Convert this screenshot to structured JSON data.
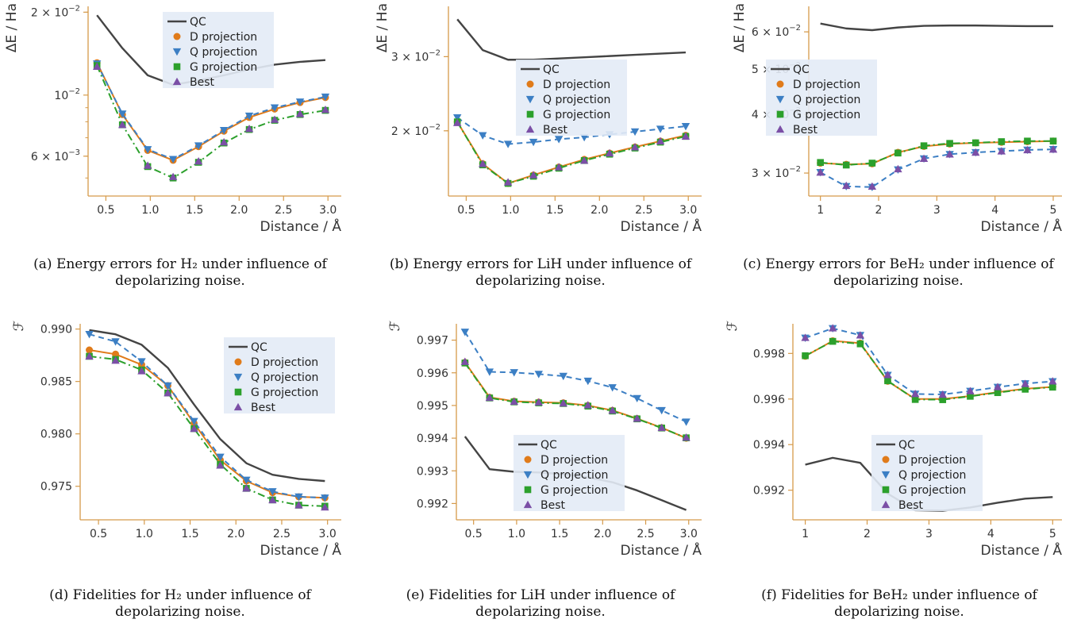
{
  "colors": {
    "QC": "#444444",
    "D projection": "#e07b1a",
    "Q projection": "#3c7fc4",
    "G projection": "#2ca02c",
    "Best": "#7b4fa6",
    "axis": "#d59a4a",
    "legend_bg": "#e3ebf6"
  },
  "captions": [
    {
      "lines": [
        "(a) Energy errors for H₂ under influence of",
        "depolarizing noise."
      ]
    },
    {
      "lines": [
        "(b) Energy errors for LiH under influence of",
        "depolarizing noise."
      ]
    },
    {
      "lines": [
        "(c) Energy errors for BeH₂ under influence of",
        "depolarizing noise."
      ]
    },
    {
      "lines": [
        "(d) Fidelities for H₂ under influence of",
        "depolarizing noise."
      ]
    },
    {
      "lines": [
        "(e) Fidelities for LiH under influence of",
        "depolarizing noise."
      ]
    },
    {
      "lines": [
        "(f) Fidelities for BeH₂ under influence of",
        "depolarizing noise."
      ]
    }
  ],
  "chart_data": [
    {
      "type": "line",
      "xlabel": "Distance / Å",
      "ylabel": "ΔE / Ha",
      "yscale": "log",
      "xlim": [
        0.3,
        3.15
      ],
      "ylim": [
        0.0043,
        0.021
      ],
      "xticks": [
        0.5,
        1.0,
        1.5,
        2.0,
        2.5,
        3.0
      ],
      "xtick_labels": [
        "0.5",
        "1.0",
        "1.5",
        "2.0",
        "2.5",
        "3.0"
      ],
      "yticks": [
        0.02,
        0.01,
        0.006
      ],
      "ytick_labels": [
        {
          "mant": "2 × 10",
          "exp": "−2"
        },
        {
          "mant": "10",
          "exp": "−2"
        },
        {
          "mant": "6 × 10",
          "exp": "−3"
        }
      ],
      "legend_position": "top-center",
      "x": [
        0.4,
        0.686,
        0.971,
        1.257,
        1.543,
        1.829,
        2.114,
        2.4,
        2.686,
        2.971
      ],
      "series": [
        {
          "name": "QC",
          "values": [
            0.0195,
            0.0148,
            0.0118,
            0.0109,
            0.0113,
            0.0118,
            0.0124,
            0.0129,
            0.0132,
            0.0134
          ]
        },
        {
          "name": "D projection",
          "values": [
            0.0131,
            0.0085,
            0.0063,
            0.0058,
            0.0065,
            0.0074,
            0.0083,
            0.0089,
            0.0094,
            0.0098
          ]
        },
        {
          "name": "Q projection",
          "values": [
            0.013,
            0.00855,
            0.00635,
            0.00585,
            0.00655,
            0.00745,
            0.0084,
            0.009,
            0.00945,
            0.00985
          ]
        },
        {
          "name": "G projection",
          "values": [
            0.0128,
            0.0078,
            0.0055,
            0.005,
            0.0057,
            0.0067,
            0.0075,
            0.0081,
            0.0085,
            0.0088
          ]
        },
        {
          "name": "Best",
          "values": [
            0.0127,
            0.0078,
            0.00555,
            0.00505,
            0.00575,
            0.00675,
            0.00755,
            0.00815,
            0.00855,
            0.00885
          ]
        }
      ]
    },
    {
      "type": "line",
      "xlabel": "Distance / Å",
      "ylabel": "ΔE / Ha",
      "yscale": "log",
      "xlim": [
        0.3,
        3.15
      ],
      "ylim": [
        0.014,
        0.0395
      ],
      "xticks": [
        0.5,
        1.0,
        1.5,
        2.0,
        2.5,
        3.0
      ],
      "xtick_labels": [
        "0.5",
        "1.0",
        "1.5",
        "2.0",
        "2.5",
        "3.0"
      ],
      "yticks": [
        0.03,
        0.02
      ],
      "ytick_labels": [
        {
          "mant": "3 × 10",
          "exp": "−2"
        },
        {
          "mant": "2 × 10",
          "exp": "−2"
        }
      ],
      "legend_position": "center-right",
      "x": [
        0.4,
        0.686,
        0.971,
        1.257,
        1.543,
        1.829,
        2.114,
        2.4,
        2.686,
        2.971
      ],
      "series": [
        {
          "name": "QC",
          "values": [
            0.0368,
            0.0311,
            0.0295,
            0.0295,
            0.0297,
            0.0299,
            0.0301,
            0.0303,
            0.0305,
            0.0307
          ]
        },
        {
          "name": "D projection",
          "values": [
            0.021,
            0.0167,
            0.015,
            0.0157,
            0.0164,
            0.0171,
            0.0177,
            0.0183,
            0.0189,
            0.0195
          ]
        },
        {
          "name": "Q projection",
          "values": [
            0.0215,
            0.0195,
            0.0186,
            0.0188,
            0.0191,
            0.0193,
            0.0196,
            0.0199,
            0.0202,
            0.0205
          ]
        },
        {
          "name": "G projection",
          "values": [
            0.021,
            0.0166,
            0.015,
            0.0156,
            0.0163,
            0.017,
            0.0176,
            0.0182,
            0.0188,
            0.0194
          ]
        },
        {
          "name": "Best",
          "values": [
            0.0209,
            0.0167,
            0.0151,
            0.0157,
            0.0164,
            0.017,
            0.0177,
            0.0183,
            0.0189,
            0.0194
          ]
        }
      ]
    },
    {
      "type": "line",
      "xlabel": "Distance / Å",
      "ylabel": "ΔE / Ha",
      "yscale": "log",
      "xlim": [
        0.8,
        5.15
      ],
      "ylim": [
        0.0268,
        0.068
      ],
      "xticks": [
        1,
        2,
        3,
        4,
        5
      ],
      "xtick_labels": [
        "1",
        "2",
        "3",
        "4",
        "5"
      ],
      "yticks": [
        0.06,
        0.05,
        0.04,
        0.03
      ],
      "ytick_labels": [
        {
          "mant": "6 × 10",
          "exp": "−2"
        },
        {
          "mant": "5 × 10",
          "exp": "−2"
        },
        {
          "mant": "4 × 10",
          "exp": "−2"
        },
        {
          "mant": "3 × 10",
          "exp": "−2"
        }
      ],
      "legend_position": "center-left",
      "x": [
        1.0,
        1.444,
        1.889,
        2.333,
        2.778,
        3.222,
        3.667,
        4.111,
        4.556,
        5.0
      ],
      "series": [
        {
          "name": "QC",
          "values": [
            0.0625,
            0.061,
            0.0605,
            0.0613,
            0.0618,
            0.0619,
            0.0619,
            0.0618,
            0.0617,
            0.0617
          ]
        },
        {
          "name": "D projection",
          "values": [
            0.0315,
            0.0313,
            0.0314,
            0.0332,
            0.0342,
            0.0346,
            0.0348,
            0.0349,
            0.035,
            0.0351
          ]
        },
        {
          "name": "Q projection",
          "values": [
            0.0301,
            0.0281,
            0.028,
            0.0305,
            0.0322,
            0.0329,
            0.0332,
            0.0334,
            0.0336,
            0.0337
          ]
        },
        {
          "name": "G projection",
          "values": [
            0.0316,
            0.0312,
            0.0315,
            0.0331,
            0.0343,
            0.0347,
            0.0348,
            0.035,
            0.0351,
            0.0351
          ]
        },
        {
          "name": "Best",
          "values": [
            0.0301,
            0.0282,
            0.0281,
            0.0306,
            0.0322,
            0.0329,
            0.0332,
            0.0334,
            0.0336,
            0.0337
          ]
        }
      ]
    },
    {
      "type": "line",
      "xlabel": "Distance / Å",
      "ylabel": "ℱ",
      "yscale": "linear",
      "xlim": [
        0.3,
        3.15
      ],
      "ylim": [
        0.9718,
        0.9905
      ],
      "xticks": [
        0.5,
        1.0,
        1.5,
        2.0,
        2.5,
        3.0
      ],
      "xtick_labels": [
        "0.5",
        "1.0",
        "1.5",
        "2.0",
        "2.5",
        "3.0"
      ],
      "yticks": [
        0.99,
        0.985,
        0.98,
        0.975
      ],
      "ytick_labels": [
        "0.990",
        "0.985",
        "0.980",
        "0.975"
      ],
      "legend_position": "top-right",
      "x": [
        0.4,
        0.686,
        0.971,
        1.257,
        1.543,
        1.829,
        2.114,
        2.4,
        2.686,
        2.971
      ],
      "series": [
        {
          "name": "QC",
          "values": [
            0.9899,
            0.9895,
            0.9885,
            0.9863,
            0.9828,
            0.9795,
            0.9772,
            0.9761,
            0.9757,
            0.9755
          ]
        },
        {
          "name": "D projection",
          "values": [
            0.988,
            0.9876,
            0.9866,
            0.9846,
            0.981,
            0.9775,
            0.9755,
            0.9744,
            0.974,
            0.9739
          ]
        },
        {
          "name": "Q projection",
          "values": [
            0.9895,
            0.9888,
            0.9869,
            0.9846,
            0.9812,
            0.9778,
            0.9756,
            0.9745,
            0.974,
            0.9739
          ]
        },
        {
          "name": "G projection",
          "values": [
            0.9874,
            0.9871,
            0.9861,
            0.9839,
            0.9805,
            0.9771,
            0.9748,
            0.9737,
            0.9732,
            0.9731
          ]
        },
        {
          "name": "Best",
          "values": [
            0.9874,
            0.987,
            0.986,
            0.9839,
            0.9805,
            0.977,
            0.9748,
            0.9737,
            0.9732,
            0.973
          ]
        }
      ]
    },
    {
      "type": "line",
      "xlabel": "Distance / Å",
      "ylabel": "ℱ",
      "yscale": "linear",
      "xlim": [
        0.3,
        3.15
      ],
      "ylim": [
        0.9915,
        0.9975
      ],
      "xticks": [
        0.5,
        1.0,
        1.5,
        2.0,
        2.5,
        3.0
      ],
      "xtick_labels": [
        "0.5",
        "1.0",
        "1.5",
        "2.0",
        "2.5",
        "3.0"
      ],
      "yticks": [
        0.997,
        0.996,
        0.995,
        0.994,
        0.993,
        0.992
      ],
      "ytick_labels": [
        "0.997",
        "0.996",
        "0.995",
        "0.994",
        "0.993",
        "0.992"
      ],
      "legend_position": "bottom-center",
      "x": [
        0.4,
        0.686,
        0.971,
        1.257,
        1.543,
        1.829,
        2.114,
        2.4,
        2.686,
        2.971
      ],
      "series": [
        {
          "name": "QC",
          "values": [
            0.99405,
            0.99305,
            0.99297,
            0.99295,
            0.9929,
            0.9928,
            0.99265,
            0.9924,
            0.9921,
            0.9918
          ]
        },
        {
          "name": "D projection",
          "values": [
            0.99632,
            0.99525,
            0.99513,
            0.9951,
            0.99508,
            0.995,
            0.99485,
            0.9946,
            0.99432,
            0.994
          ]
        },
        {
          "name": "Q projection",
          "values": [
            0.99725,
            0.99603,
            0.99601,
            0.99596,
            0.9959,
            0.99575,
            0.99555,
            0.99522,
            0.99485,
            0.9945
          ]
        },
        {
          "name": "G projection",
          "values": [
            0.9963,
            0.99523,
            0.99511,
            0.99508,
            0.99506,
            0.99498,
            0.99483,
            0.99459,
            0.99431,
            0.99401
          ]
        },
        {
          "name": "Best",
          "values": [
            0.99634,
            0.99524,
            0.99512,
            0.9951,
            0.99507,
            0.99501,
            0.99485,
            0.9946,
            0.99432,
            0.99402
          ]
        }
      ]
    },
    {
      "type": "line",
      "xlabel": "Distance / Å",
      "ylabel": "ℱ",
      "yscale": "linear",
      "xlim": [
        0.8,
        5.15
      ],
      "ylim": [
        0.9907,
        0.9993
      ],
      "xticks": [
        1,
        2,
        3,
        4,
        5
      ],
      "xtick_labels": [
        "1",
        "2",
        "3",
        "4",
        "5"
      ],
      "yticks": [
        0.998,
        0.996,
        0.994,
        0.992
      ],
      "ytick_labels": [
        "0.998",
        "0.996",
        "0.994",
        "0.992"
      ],
      "legend_position": "bottom-center",
      "x": [
        1.0,
        1.444,
        1.889,
        2.333,
        2.778,
        3.222,
        3.667,
        4.111,
        4.556,
        5.0
      ],
      "series": [
        {
          "name": "QC",
          "values": [
            0.99312,
            0.99342,
            0.9932,
            0.99185,
            0.99112,
            0.9911,
            0.99124,
            0.99145,
            0.99163,
            0.9917
          ]
        },
        {
          "name": "D projection",
          "values": [
            0.99788,
            0.99855,
            0.99845,
            0.99678,
            0.996,
            0.996,
            0.99613,
            0.9963,
            0.99645,
            0.99653
          ]
        },
        {
          "name": "Q projection",
          "values": [
            0.99868,
            0.9991,
            0.9988,
            0.99705,
            0.99622,
            0.9962,
            0.99635,
            0.99652,
            0.99668,
            0.99677
          ]
        },
        {
          "name": "G projection",
          "values": [
            0.9979,
            0.99853,
            0.99842,
            0.9968,
            0.99598,
            0.99597,
            0.99612,
            0.99628,
            0.99643,
            0.99652
          ]
        },
        {
          "name": "Best",
          "values": [
            0.99869,
            0.99911,
            0.9988,
            0.99706,
            0.99623,
            0.9962,
            0.99635,
            0.99653,
            0.99667,
            0.99678
          ]
        }
      ]
    }
  ]
}
